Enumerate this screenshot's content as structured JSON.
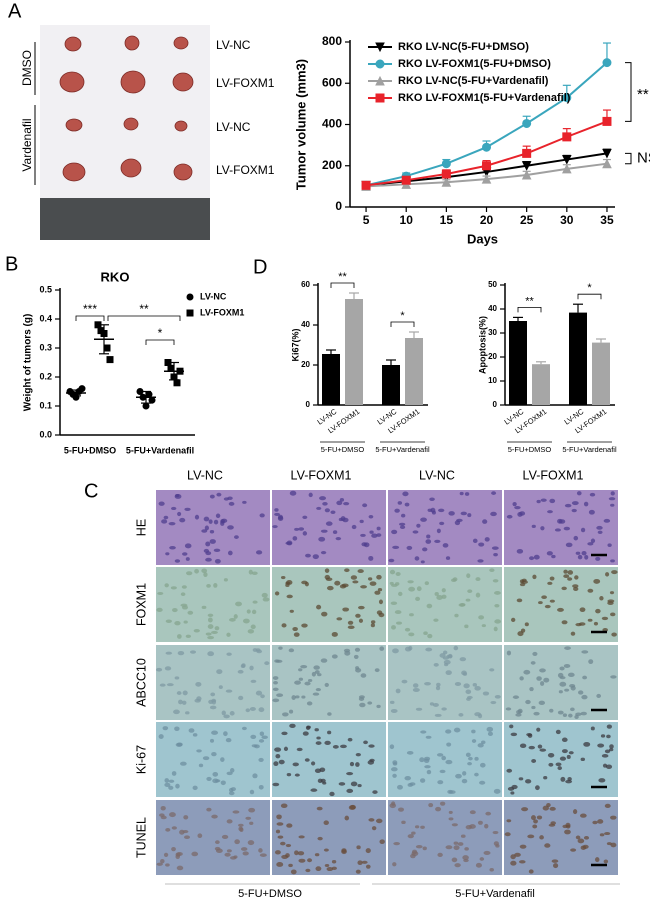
{
  "panels": {
    "a": "A",
    "b": "B",
    "c": "C",
    "d": "D"
  },
  "photo": {
    "rows": [
      "LV-NC",
      "LV-FOXM1",
      "LV-NC",
      "LV-FOXM1"
    ],
    "groups": [
      "DMSO",
      "Vardenafil"
    ]
  },
  "chart_data": [
    {
      "type": "line",
      "xlabel": "Days",
      "ylabel": "Tumor volume (mm3)",
      "x": [
        5,
        10,
        15,
        20,
        25,
        30,
        35
      ],
      "xlim": [
        3,
        36
      ],
      "xticks": [
        5,
        10,
        15,
        20,
        25,
        30,
        35
      ],
      "ylim": [
        0,
        800
      ],
      "yticks": [
        0,
        200,
        400,
        600,
        800
      ],
      "legend": "upper left",
      "series": [
        {
          "name": "RKO LV-NC(5-FU+DMSO)",
          "color": "#000000",
          "marker": "triangle-down",
          "values": [
            105,
            125,
            145,
            170,
            200,
            230,
            260
          ],
          "errors": [
            10,
            15,
            15,
            20,
            20,
            20,
            20
          ]
        },
        {
          "name": "RKO LV-FOXM1(5-FU+DMSO)",
          "color": "#3aa6bd",
          "marker": "circle",
          "values": [
            105,
            150,
            210,
            290,
            405,
            530,
            700
          ],
          "errors": [
            10,
            15,
            20,
            30,
            35,
            60,
            95
          ]
        },
        {
          "name": "RKO LV-NC(5-FU+Vardenafil)",
          "color": "#a0a0a0",
          "marker": "triangle-up",
          "values": [
            100,
            110,
            120,
            135,
            155,
            185,
            210
          ],
          "errors": [
            8,
            10,
            12,
            15,
            18,
            20,
            20
          ]
        },
        {
          "name": "RKO LV-FOXM1(5-FU+Vardenafil)",
          "color": "#e8232b",
          "marker": "square",
          "values": [
            105,
            130,
            160,
            200,
            260,
            340,
            415
          ],
          "errors": [
            10,
            15,
            20,
            25,
            35,
            40,
            55
          ]
        }
      ],
      "annotations": [
        "**",
        "NS"
      ]
    },
    {
      "type": "scatter",
      "title": "RKO",
      "ylabel": "Weight of tumors (g)",
      "categories": [
        "5-FU+DMSO",
        "5-FU+Vardenafil"
      ],
      "ylim": [
        0,
        0.5
      ],
      "yticks": [
        {
          "value": 0,
          "label": "0.0"
        },
        {
          "value": 0.1,
          "label": "0.1"
        },
        {
          "value": 0.2,
          "label": "0.2"
        },
        {
          "value": 0.3,
          "label": "0.3"
        },
        {
          "value": 0.4,
          "label": "0.4"
        },
        {
          "value": 0.5,
          "label": "0.5"
        }
      ],
      "legend": "upper right",
      "series": [
        {
          "name": "LV-NC",
          "color": "#000000",
          "marker": "circle",
          "values": [
            [
              0.15,
              0.14,
              0.13,
              0.15,
              0.16
            ],
            [
              0.15,
              0.13,
              0.1,
              0.14,
              0.12
            ]
          ],
          "mean": [
            0.145,
            0.13
          ],
          "sd": [
            0.01,
            0.02
          ]
        },
        {
          "name": "LV-FOXM1",
          "color": "#000000",
          "marker": "square",
          "values": [
            [
              0.38,
              0.36,
              0.35,
              0.3,
              0.26
            ],
            [
              0.25,
              0.23,
              0.2,
              0.18,
              0.22
            ]
          ],
          "mean": [
            0.33,
            0.22
          ],
          "sd": [
            0.05,
            0.03
          ]
        }
      ],
      "annotations": [
        "***",
        "**",
        "*"
      ]
    },
    {
      "type": "bar",
      "ylabel": "Ki67(%)",
      "categories": [
        "LV-NC",
        "LV-FOXM1",
        "LV-NC",
        "LV-FOXM1"
      ],
      "groups": [
        "5-FU+DMSO",
        "5-FU+Vardenafil"
      ],
      "colors": [
        "#000000",
        "#a6a6a6",
        "#000000",
        "#a6a6a6"
      ],
      "values": [
        25.5,
        53,
        20,
        33.5
      ],
      "errors": [
        2,
        3,
        2.5,
        3
      ],
      "ylim": [
        0,
        60
      ],
      "yticks": [
        0,
        20,
        40,
        60
      ],
      "annotations": [
        "**",
        "*"
      ]
    },
    {
      "type": "bar",
      "ylabel": "Apoptosis(%)",
      "categories": [
        "LV-NC",
        "LV-FOXM1",
        "LV-NC",
        "LV-FOXM1"
      ],
      "groups": [
        "5-FU+DMSO",
        "5-FU+Vardenafil"
      ],
      "colors": [
        "#000000",
        "#a6a6a6",
        "#000000",
        "#a6a6a6"
      ],
      "values": [
        35,
        17,
        38.5,
        26
      ],
      "errors": [
        1.5,
        1,
        3.5,
        1.5
      ],
      "ylim": [
        0,
        50
      ],
      "yticks": [
        0,
        10,
        20,
        30,
        40,
        50
      ],
      "annotations": [
        "**",
        "*"
      ]
    }
  ],
  "ihc": {
    "columns": [
      "LV-NC",
      "LV-FOXM1",
      "LV-NC",
      "LV-FOXM1"
    ],
    "rows": [
      "HE",
      "FOXM1",
      "ABCC10",
      "Ki-67",
      "TUNEL"
    ],
    "groups": [
      "5-FU+DMSO",
      "5-FU+Vardenafil"
    ]
  }
}
